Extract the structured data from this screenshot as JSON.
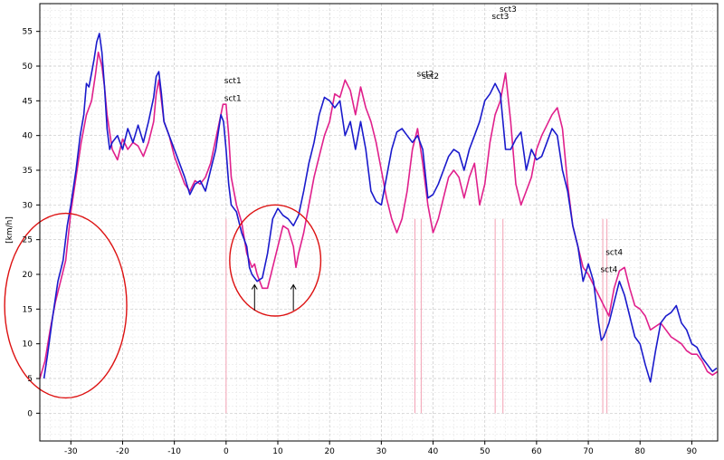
{
  "chart_data": {
    "type": "line",
    "title": "",
    "xlabel": "",
    "ylabel": "[km/h]",
    "xlim": [
      -36,
      95
    ],
    "ylim": [
      -4,
      59
    ],
    "x_ticks": [
      -30,
      -20,
      -10,
      0,
      10,
      20,
      30,
      40,
      50,
      60,
      70,
      80,
      90
    ],
    "y_ticks": [
      0,
      5,
      10,
      15,
      20,
      25,
      30,
      35,
      40,
      45,
      50,
      55
    ],
    "grid": true,
    "colors": {
      "series_blue": "#1a1acc",
      "series_magenta": "#e0208c",
      "marker_lines": "#f3a0b4",
      "circles": "#dd1111"
    },
    "series": [
      {
        "values": [
          [
            -35.2,
            5.0
          ],
          [
            -34.5,
            8.5
          ],
          [
            -33.5,
            14.0
          ],
          [
            -32.5,
            19.0
          ],
          [
            -31.5,
            22.0
          ],
          [
            -30.7,
            27.0
          ],
          [
            -30,
            30.0
          ],
          [
            -29,
            35.0
          ],
          [
            -28.2,
            40.0
          ],
          [
            -27.5,
            43.0
          ],
          [
            -27,
            47.5
          ],
          [
            -26.5,
            47.0
          ],
          [
            -26,
            49.0
          ],
          [
            -25.5,
            51.0
          ],
          [
            -25,
            53.5
          ],
          [
            -24.5,
            54.7
          ],
          [
            -24,
            52.0
          ],
          [
            -23.5,
            47.0
          ],
          [
            -23,
            41.0
          ],
          [
            -22.5,
            38.0
          ],
          [
            -22,
            39.0
          ],
          [
            -21,
            40.0
          ],
          [
            -20,
            38.0
          ],
          [
            -19,
            41.0
          ],
          [
            -18,
            39.0
          ],
          [
            -17,
            41.5
          ],
          [
            -16,
            39.0
          ],
          [
            -15,
            42.0
          ],
          [
            -14,
            45.5
          ],
          [
            -13.5,
            48.5
          ],
          [
            -13,
            49.2
          ],
          [
            -12.5,
            46.0
          ],
          [
            -12,
            42.0
          ],
          [
            -11,
            40.0
          ],
          [
            -10,
            38.0
          ],
          [
            -9,
            36.0
          ],
          [
            -8,
            34.0
          ],
          [
            -7,
            31.5
          ],
          [
            -6,
            33.0
          ],
          [
            -5,
            33.5
          ],
          [
            -4,
            32.0
          ],
          [
            -3,
            35.0
          ],
          [
            -2,
            38.0
          ],
          [
            -1,
            43.0
          ],
          [
            -0.5,
            42.0
          ],
          [
            0,
            38.0
          ],
          [
            0.5,
            33.0
          ],
          [
            1,
            30.0
          ],
          [
            2,
            29.0
          ],
          [
            3,
            26.0
          ],
          [
            4,
            24.0
          ],
          [
            4.5,
            21.0
          ],
          [
            5,
            20.0
          ],
          [
            6,
            19.0
          ],
          [
            7,
            19.5
          ],
          [
            8,
            23.0
          ],
          [
            9,
            28.0
          ],
          [
            10,
            29.5
          ],
          [
            11,
            28.5
          ],
          [
            12,
            28.0
          ],
          [
            13,
            27.0
          ],
          [
            14,
            28.5
          ],
          [
            15,
            32.0
          ],
          [
            16,
            36.0
          ],
          [
            17,
            39.0
          ],
          [
            18,
            43.0
          ],
          [
            19,
            45.5
          ],
          [
            20,
            45.0
          ],
          [
            21,
            44.0
          ],
          [
            22,
            45.0
          ],
          [
            23,
            40.0
          ],
          [
            24,
            42.0
          ],
          [
            25,
            38.0
          ],
          [
            26,
            42.0
          ],
          [
            27,
            38.0
          ],
          [
            28,
            32.0
          ],
          [
            29,
            30.5
          ],
          [
            30,
            30.0
          ],
          [
            31,
            34.0
          ],
          [
            32,
            38.0
          ],
          [
            33,
            40.5
          ],
          [
            34,
            41.0
          ],
          [
            35,
            40.0
          ],
          [
            36,
            39.0
          ],
          [
            37,
            40.0
          ],
          [
            38,
            38.0
          ],
          [
            39,
            31.0
          ],
          [
            40,
            31.5
          ],
          [
            41,
            33.0
          ],
          [
            42,
            35.0
          ],
          [
            43,
            37.0
          ],
          [
            44,
            38.0
          ],
          [
            45,
            37.5
          ],
          [
            46,
            35.0
          ],
          [
            47,
            38.0
          ],
          [
            48,
            40.0
          ],
          [
            49,
            42.0
          ],
          [
            50,
            45.0
          ],
          [
            51,
            46.0
          ],
          [
            52,
            47.5
          ],
          [
            53,
            46.0
          ],
          [
            54,
            38.0
          ],
          [
            55,
            38.0
          ],
          [
            56,
            39.5
          ],
          [
            57,
            40.5
          ],
          [
            58,
            35.0
          ],
          [
            59,
            38.0
          ],
          [
            60,
            36.5
          ],
          [
            61,
            37.0
          ],
          [
            62,
            39.0
          ],
          [
            63,
            41.0
          ],
          [
            64,
            40.0
          ],
          [
            65,
            35.0
          ],
          [
            66,
            32.0
          ],
          [
            67,
            27.0
          ],
          [
            68,
            24.0
          ],
          [
            69,
            19.0
          ],
          [
            70,
            21.5
          ],
          [
            71,
            19.0
          ],
          [
            72,
            13.0
          ],
          [
            72.5,
            10.5
          ],
          [
            73,
            11.0
          ],
          [
            74,
            13.0
          ],
          [
            75,
            16.0
          ],
          [
            76,
            19.0
          ],
          [
            77,
            17.0
          ],
          [
            78,
            14.0
          ],
          [
            79,
            11.0
          ],
          [
            80,
            10.0
          ],
          [
            81,
            7.0
          ],
          [
            82,
            4.5
          ],
          [
            83,
            9.0
          ],
          [
            84,
            13.0
          ],
          [
            85,
            14.0
          ],
          [
            86,
            14.5
          ],
          [
            87,
            15.5
          ],
          [
            88,
            13.0
          ],
          [
            89,
            12.0
          ],
          [
            90,
            10.0
          ],
          [
            91,
            9.5
          ],
          [
            92,
            8.0
          ],
          [
            93,
            7.0
          ],
          [
            94,
            6.0
          ],
          [
            94.8,
            6.5
          ]
        ]
      },
      {
        "values": [
          [
            -36,
            5.0
          ],
          [
            -35,
            7.5
          ],
          [
            -34,
            12.0
          ],
          [
            -33,
            16.0
          ],
          [
            -32,
            19.0
          ],
          [
            -31,
            22.0
          ],
          [
            -30,
            29.0
          ],
          [
            -29,
            34.0
          ],
          [
            -28,
            39.0
          ],
          [
            -27,
            43.0
          ],
          [
            -26,
            45.0
          ],
          [
            -25.2,
            49.0
          ],
          [
            -24.7,
            52.0
          ],
          [
            -24,
            50.0
          ],
          [
            -23.5,
            47.0
          ],
          [
            -23,
            43.0
          ],
          [
            -22,
            38.0
          ],
          [
            -21,
            36.5
          ],
          [
            -20,
            39.5
          ],
          [
            -19,
            38.0
          ],
          [
            -18,
            39.0
          ],
          [
            -17,
            38.5
          ],
          [
            -16,
            37.0
          ],
          [
            -15,
            39.0
          ],
          [
            -14,
            42.0
          ],
          [
            -13.5,
            46.0
          ],
          [
            -13,
            48.0
          ],
          [
            -12.5,
            45.0
          ],
          [
            -12,
            42.0
          ],
          [
            -11,
            40.0
          ],
          [
            -10,
            37.0
          ],
          [
            -9,
            35.0
          ],
          [
            -8,
            33.0
          ],
          [
            -7,
            32.0
          ],
          [
            -6,
            33.5
          ],
          [
            -5,
            33.0
          ],
          [
            -4,
            34.0
          ],
          [
            -3,
            36.0
          ],
          [
            -2,
            39.5
          ],
          [
            -1,
            43.0
          ],
          [
            -0.6,
            44.5
          ],
          [
            0,
            44.5
          ],
          [
            0.5,
            40.0
          ],
          [
            1,
            34.0
          ],
          [
            2,
            30.0
          ],
          [
            3,
            27.5
          ],
          [
            4,
            23.0
          ],
          [
            5,
            21.0
          ],
          [
            5.5,
            21.5
          ],
          [
            6,
            20.0
          ],
          [
            7,
            18.0
          ],
          [
            8,
            18.0
          ],
          [
            9,
            21.0
          ],
          [
            10,
            24.0
          ],
          [
            11,
            27.0
          ],
          [
            12,
            26.5
          ],
          [
            13,
            24.0
          ],
          [
            13.5,
            21.0
          ],
          [
            14,
            23.0
          ],
          [
            15,
            26.0
          ],
          [
            16,
            30.0
          ],
          [
            17,
            34.0
          ],
          [
            18,
            37.0
          ],
          [
            19,
            40.0
          ],
          [
            20,
            42.0
          ],
          [
            21,
            46.0
          ],
          [
            22,
            45.5
          ],
          [
            23,
            48.0
          ],
          [
            24,
            46.5
          ],
          [
            25,
            43.0
          ],
          [
            26,
            47.0
          ],
          [
            27,
            44.0
          ],
          [
            28,
            42.0
          ],
          [
            29,
            39.0
          ],
          [
            30,
            35.0
          ],
          [
            31,
            31.0
          ],
          [
            32,
            28.0
          ],
          [
            33,
            26.0
          ],
          [
            34,
            28.0
          ],
          [
            35,
            32.0
          ],
          [
            36,
            38.0
          ],
          [
            37,
            41.0
          ],
          [
            38,
            36.0
          ],
          [
            39,
            30.0
          ],
          [
            40,
            26.0
          ],
          [
            41,
            28.0
          ],
          [
            42,
            31.0
          ],
          [
            43,
            34.0
          ],
          [
            44,
            35.0
          ],
          [
            45,
            34.0
          ],
          [
            46,
            31.0
          ],
          [
            47,
            34.0
          ],
          [
            48,
            36.0
          ],
          [
            49,
            30.0
          ],
          [
            50,
            33.0
          ],
          [
            51,
            39.0
          ],
          [
            52,
            43.0
          ],
          [
            53,
            45.0
          ],
          [
            54,
            49.0
          ],
          [
            55,
            42.0
          ],
          [
            56,
            33.0
          ],
          [
            57,
            30.0
          ],
          [
            58,
            32.0
          ],
          [
            59,
            34.0
          ],
          [
            60,
            38.0
          ],
          [
            61,
            40.0
          ],
          [
            62,
            41.5
          ],
          [
            63,
            43.0
          ],
          [
            64,
            44.0
          ],
          [
            65,
            41.0
          ],
          [
            66,
            33.0
          ],
          [
            67,
            27.0
          ],
          [
            68,
            24.0
          ],
          [
            69,
            21.0
          ],
          [
            70,
            20.0
          ],
          [
            71,
            18.5
          ],
          [
            72,
            17.0
          ],
          [
            73,
            15.5
          ],
          [
            74,
            14.0
          ],
          [
            75,
            18.0
          ],
          [
            76,
            20.5
          ],
          [
            77,
            21.0
          ],
          [
            78,
            18.0
          ],
          [
            79,
            15.5
          ],
          [
            80,
            15.0
          ],
          [
            81,
            14.0
          ],
          [
            82,
            12.0
          ],
          [
            83,
            12.5
          ],
          [
            84,
            13.0
          ],
          [
            85,
            12.0
          ],
          [
            86,
            11.0
          ],
          [
            87,
            10.5
          ],
          [
            88,
            10.0
          ],
          [
            89,
            9.0
          ],
          [
            90,
            8.5
          ],
          [
            91,
            8.5
          ],
          [
            92,
            7.5
          ],
          [
            93,
            6.0
          ],
          [
            94,
            5.5
          ],
          [
            95,
            6.0
          ]
        ]
      }
    ],
    "annotations": [
      {
        "text": "sct1",
        "x": 1.3,
        "y": 47.5
      },
      {
        "text": "sct1",
        "x": 1.3,
        "y": 45.0
      },
      {
        "text": "sct2",
        "x": 38.5,
        "y": 48.5
      },
      {
        "text": "sct2",
        "x": 39.5,
        "y": 48.2
      },
      {
        "text": "sct3",
        "x": 54.5,
        "y": 57.8
      },
      {
        "text": "sct3",
        "x": 53.0,
        "y": 56.8
      },
      {
        "text": "sct4",
        "x": 75.0,
        "y": 22.8
      },
      {
        "text": "sct4",
        "x": 74.0,
        "y": 20.3
      }
    ],
    "vlines": [
      0.0,
      36.5,
      37.7,
      52.0,
      53.5,
      72.8,
      73.6
    ],
    "circles": [
      {
        "cx": -31.0,
        "cy": 15.5,
        "rx": 11.8,
        "ry": 13.3
      },
      {
        "cx": 9.5,
        "cy": 22.0,
        "rx": 8.8,
        "ry": 8.0
      }
    ],
    "arrows": [
      {
        "x": 5.5,
        "y_from": 14.8,
        "y_to": 18.5
      },
      {
        "x": 13.0,
        "y_from": 14.8,
        "y_to": 18.5
      }
    ]
  }
}
